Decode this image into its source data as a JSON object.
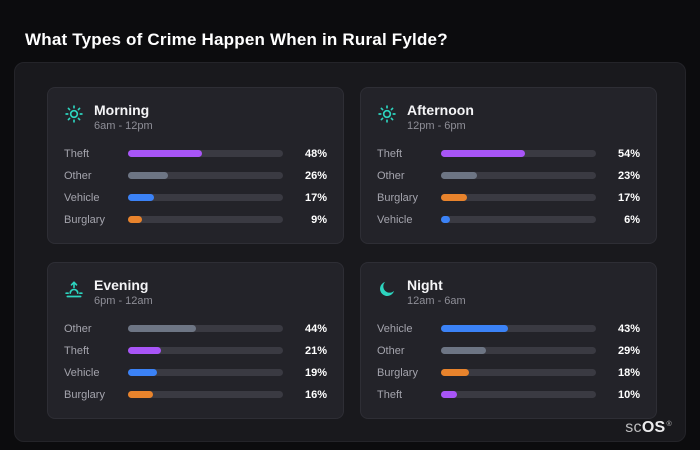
{
  "page": {
    "title": "What Types of Crime Happen When in Rural Fylde?"
  },
  "brand": {
    "prefix": "sc",
    "suffix": "OS",
    "reg": "®"
  },
  "colors": {
    "theft": "#a855f7",
    "other": "#6d7584",
    "vehicle": "#3b82f6",
    "burglary": "#e8832c",
    "icon_accent": "#2dd4bf",
    "page_bg": "#0c0c0e",
    "panel_bg": "#19191d",
    "card_bg": "#232329",
    "track_bg": "#3a3a42"
  },
  "chart_data": [
    {
      "type": "bar",
      "title": "Morning",
      "subtitle": "6am - 12pm",
      "icon": "sun",
      "xlim": [
        0,
        100
      ],
      "categories": [
        "Theft",
        "Other",
        "Vehicle",
        "Burglary"
      ],
      "values": [
        48,
        26,
        17,
        9
      ],
      "value_labels": [
        "48%",
        "26%",
        "17%",
        "9%"
      ],
      "bar_colors": [
        "#a855f7",
        "#6d7584",
        "#3b82f6",
        "#e8832c"
      ]
    },
    {
      "type": "bar",
      "title": "Afternoon",
      "subtitle": "12pm - 6pm",
      "icon": "sun",
      "xlim": [
        0,
        100
      ],
      "categories": [
        "Theft",
        "Other",
        "Burglary",
        "Vehicle"
      ],
      "values": [
        54,
        23,
        17,
        6
      ],
      "value_labels": [
        "54%",
        "23%",
        "17%",
        "6%"
      ],
      "bar_colors": [
        "#a855f7",
        "#6d7584",
        "#e8832c",
        "#3b82f6"
      ]
    },
    {
      "type": "bar",
      "title": "Evening",
      "subtitle": "6pm - 12am",
      "icon": "sunrise",
      "xlim": [
        0,
        100
      ],
      "categories": [
        "Other",
        "Theft",
        "Vehicle",
        "Burglary"
      ],
      "values": [
        44,
        21,
        19,
        16
      ],
      "value_labels": [
        "44%",
        "21%",
        "19%",
        "16%"
      ],
      "bar_colors": [
        "#6d7584",
        "#a855f7",
        "#3b82f6",
        "#e8832c"
      ]
    },
    {
      "type": "bar",
      "title": "Night",
      "subtitle": "12am - 6am",
      "icon": "moon",
      "xlim": [
        0,
        100
      ],
      "categories": [
        "Vehicle",
        "Other",
        "Burglary",
        "Theft"
      ],
      "values": [
        43,
        29,
        18,
        10
      ],
      "value_labels": [
        "43%",
        "29%",
        "18%",
        "10%"
      ],
      "bar_colors": [
        "#3b82f6",
        "#6d7584",
        "#e8832c",
        "#a855f7"
      ]
    }
  ]
}
